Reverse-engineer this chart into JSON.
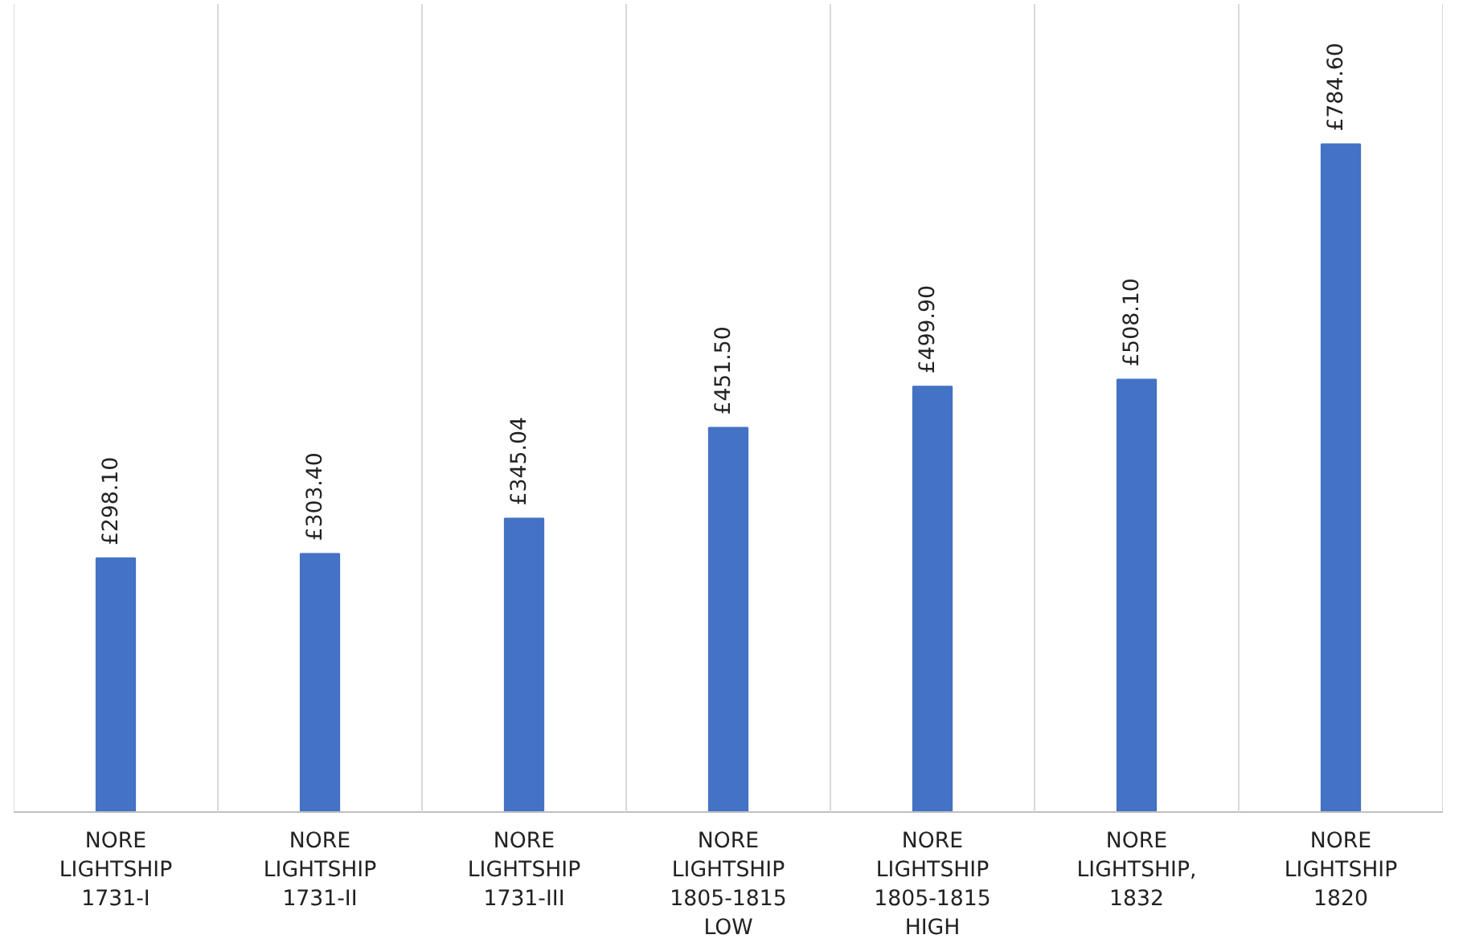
{
  "chart_data": {
    "type": "bar",
    "categories": [
      "NORE LIGHTSHIP 1731-I",
      "NORE LIGHTSHIP 1731-II",
      "NORE LIGHTSHIP 1731-III",
      "NORE LIGHTSHIP 1805-1815 LOW",
      "NORE LIGHTSHIP 1805-1815 HIGH",
      "NORE LIGHTSHIP, 1832",
      "NORE LIGHTSHIP 1820"
    ],
    "values": [
      298.1,
      303.4,
      345.04,
      451.5,
      499.9,
      508.1,
      784.6
    ],
    "value_labels": [
      "£298.10",
      "£303.40",
      "£345.04",
      "£451.50",
      "£499.90",
      "£508.10",
      "£784.60"
    ],
    "color": "#4472c4",
    "grid": "x"
  }
}
